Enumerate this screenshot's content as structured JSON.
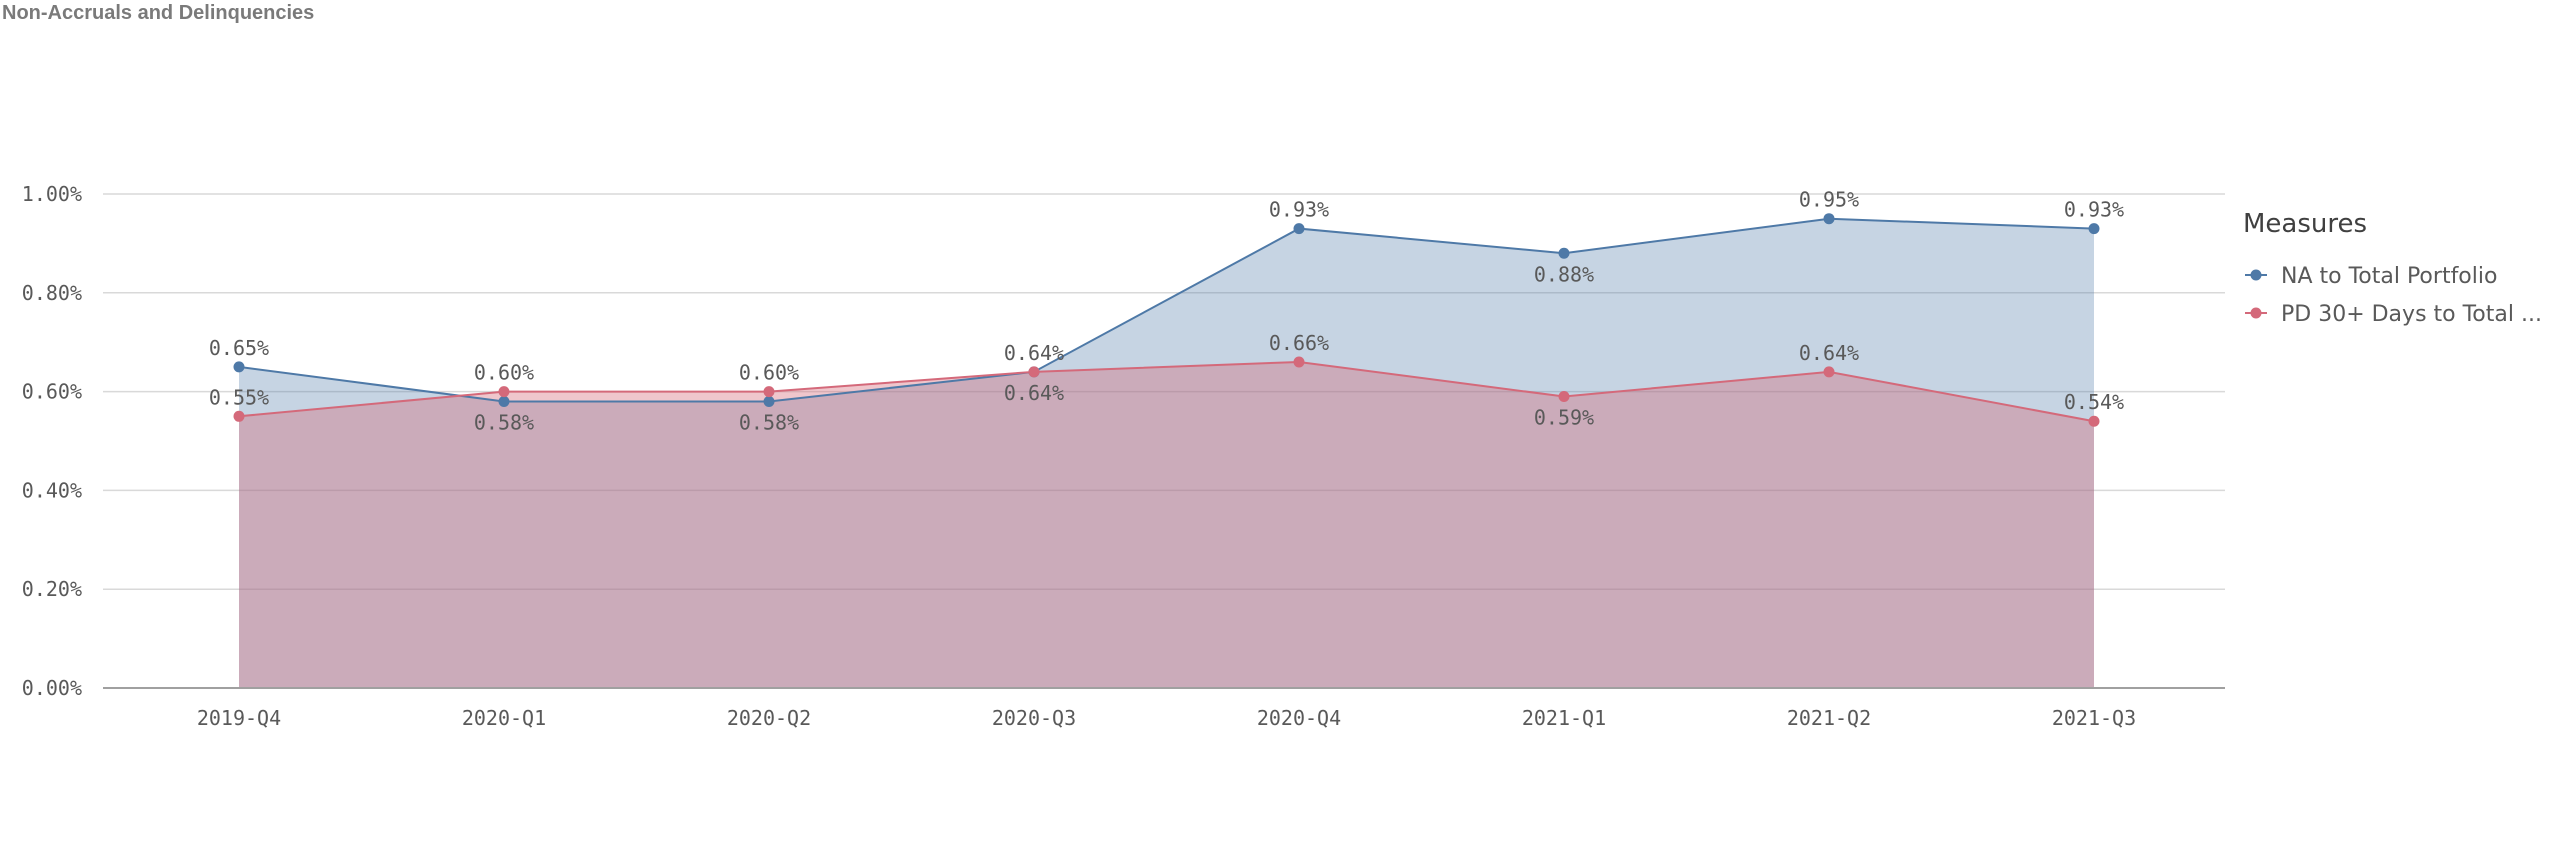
{
  "title": "Non-Accruals and Delinquencies",
  "colors": {
    "na": "#4e79a7",
    "pd": "#d4697a",
    "grid": "#d9d9d9",
    "axis": "#a0a0a0"
  },
  "chart_data": {
    "type": "area",
    "title": "Non-Accruals and Delinquencies",
    "xlabel": "",
    "ylabel": "",
    "categories": [
      "2019-Q4",
      "2020-Q1",
      "2020-Q2",
      "2020-Q3",
      "2020-Q4",
      "2021-Q1",
      "2021-Q2",
      "2021-Q3"
    ],
    "ylim": [
      0,
      1.0
    ],
    "y_ticks": [
      0,
      0.2,
      0.4,
      0.6,
      0.8,
      1.0
    ],
    "y_tick_labels": [
      "0.00%",
      "0.20%",
      "0.40%",
      "0.60%",
      "0.80%",
      "1.00%"
    ],
    "grid": true,
    "legend_position": "right",
    "legend_title": "Measures",
    "series": [
      {
        "name": "NA to Total Portfolio",
        "legend_label": "NA to Total Portfolio",
        "values": [
          0.65,
          0.58,
          0.58,
          0.64,
          0.93,
          0.88,
          0.95,
          0.93
        ],
        "labels": [
          "0.65%",
          "0.58%",
          "0.58%",
          "0.64%",
          "0.93%",
          "0.88%",
          "0.95%",
          "0.93%"
        ],
        "label_side": [
          "above",
          "below",
          "below",
          "above",
          "above",
          "below",
          "above",
          "above"
        ]
      },
      {
        "name": "PD 30+ Days to Total ...",
        "legend_label": "PD 30+ Days to Total ...",
        "values": [
          0.55,
          0.6,
          0.6,
          0.64,
          0.66,
          0.59,
          0.64,
          0.54
        ],
        "labels": [
          "0.55%",
          "0.60%",
          "0.60%",
          "0.64%",
          "0.66%",
          "0.59%",
          "0.64%",
          "0.54%"
        ],
        "label_side": [
          "above",
          "above",
          "above",
          "below",
          "above",
          "below",
          "above",
          "above"
        ]
      }
    ]
  }
}
